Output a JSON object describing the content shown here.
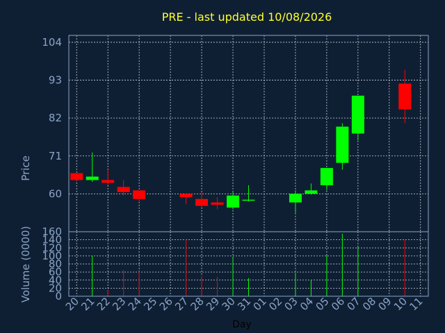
{
  "chart_data": {
    "type": "candlestick",
    "title": "PRE - last updated 10/08/2026",
    "xlabel": "Day",
    "price_ylabel": "Price",
    "volume_ylabel": "Volume (0000)",
    "price_ylim": [
      49,
      106
    ],
    "price_yticks": [
      60,
      71,
      82,
      93,
      104
    ],
    "volume_ylim": [
      0,
      160
    ],
    "volume_yticks": [
      0,
      20,
      40,
      60,
      80,
      100,
      120,
      140,
      160
    ],
    "xticks": [
      "20",
      "21",
      "22",
      "23",
      "24",
      "25",
      "26",
      "27",
      "28",
      "29",
      "30",
      "31",
      "01",
      "02",
      "03",
      "04",
      "05",
      "06",
      "07",
      "08",
      "09",
      "10",
      "11"
    ],
    "up_color": "#00ff00",
    "down_color": "#ff0000",
    "background": "#0f1f33",
    "candles": [
      {
        "day": "20",
        "open": 66.0,
        "close": 64.0,
        "high": 66.0,
        "low": 63.8,
        "volume": 0
      },
      {
        "day": "21",
        "open": 64.0,
        "close": 65.0,
        "high": 72.0,
        "low": 63.5,
        "volume": 100
      },
      {
        "day": "22",
        "open": 64.0,
        "close": 63.2,
        "high": 67.0,
        "low": 62.5,
        "volume": 15
      },
      {
        "day": "23",
        "open": 62.0,
        "close": 60.5,
        "high": 64.0,
        "low": 59.5,
        "volume": 65
      },
      {
        "day": "24",
        "open": 61.0,
        "close": 58.5,
        "high": 61.0,
        "low": 57.5,
        "volume": 62
      },
      {
        "day": "27",
        "open": 60.0,
        "close": 59.0,
        "high": 60.0,
        "low": 57.0,
        "volume": 140
      },
      {
        "day": "28",
        "open": 58.5,
        "close": 56.5,
        "high": 60.5,
        "low": 56.0,
        "volume": 50
      },
      {
        "day": "29",
        "open": 57.5,
        "close": 56.8,
        "high": 59.0,
        "low": 55.5,
        "volume": 48
      },
      {
        "day": "30",
        "open": 56.0,
        "close": 59.5,
        "high": 60.5,
        "low": 55.5,
        "volume": 95
      },
      {
        "day": "31",
        "open": 58.0,
        "close": 58.3,
        "high": 62.5,
        "low": 57.8,
        "volume": 45
      },
      {
        "day": "03",
        "open": 57.5,
        "close": 60.0,
        "high": 61.0,
        "low": 54.5,
        "volume": 58
      },
      {
        "day": "04",
        "open": 60.0,
        "close": 61.0,
        "high": 63.0,
        "low": 59.8,
        "volume": 40
      },
      {
        "day": "05",
        "open": 62.5,
        "close": 67.5,
        "high": 67.5,
        "low": 61.0,
        "volume": 102
      },
      {
        "day": "06",
        "open": 69.0,
        "close": 79.5,
        "high": 80.5,
        "low": 67.0,
        "volume": 155
      },
      {
        "day": "07",
        "open": 77.5,
        "close": 88.5,
        "high": 88.5,
        "low": 75.5,
        "volume": 122
      },
      {
        "day": "10",
        "open": 92.0,
        "close": 84.5,
        "high": 96.0,
        "low": 80.5,
        "volume": 140
      }
    ]
  }
}
